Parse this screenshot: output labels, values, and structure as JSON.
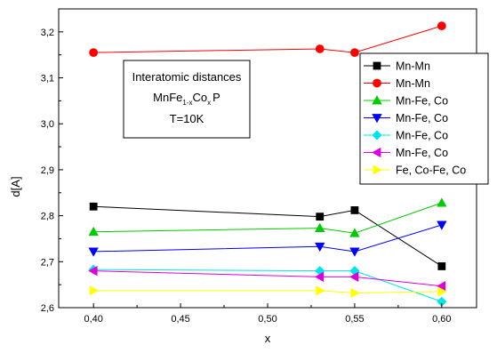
{
  "chart_data": {
    "type": "line",
    "xlabel": "x",
    "ylabel": "d[A]",
    "xlim": [
      0.38,
      0.62
    ],
    "ylim": [
      2.6,
      3.25
    ],
    "x_ticks": [
      0.4,
      0.45,
      0.5,
      0.55,
      0.6
    ],
    "x_tick_labels": [
      "0,40",
      "0,45",
      "0,50",
      "0,55",
      "0,60"
    ],
    "y_ticks": [
      2.6,
      2.7,
      2.8,
      2.9,
      3.0,
      3.1,
      3.2
    ],
    "y_tick_labels": [
      "2,6",
      "2,7",
      "2,8",
      "2,9",
      "3,0",
      "3,1",
      "3,2"
    ],
    "x": [
      0.4,
      0.53,
      0.55,
      0.6
    ],
    "legend_position": "right",
    "series": [
      {
        "name": "Mn-Mn",
        "color": "#000000",
        "marker": "square",
        "values": [
          2.82,
          2.798,
          2.812,
          2.69
        ]
      },
      {
        "name": "Mn-Mn",
        "color": "#ff0000",
        "marker": "circle",
        "values": [
          3.155,
          3.163,
          3.155,
          3.213
        ]
      },
      {
        "name": "Mn-Fe, Co",
        "color": "#00cc00",
        "marker": "triangle-up",
        "values": [
          2.765,
          2.773,
          2.762,
          2.828
        ]
      },
      {
        "name": "Mn-Fe, Co",
        "color": "#0000ff",
        "marker": "triangle-down",
        "values": [
          2.722,
          2.733,
          2.722,
          2.78
        ]
      },
      {
        "name": "Mn-Fe, Co",
        "color": "#00e5e5",
        "marker": "diamond",
        "values": [
          2.683,
          2.68,
          2.68,
          2.613
        ]
      },
      {
        "name": "Mn-Fe, Co",
        "color": "#dd00dd",
        "marker": "triangle-left",
        "values": [
          2.68,
          2.667,
          2.667,
          2.647
        ]
      },
      {
        "name": "Fe, Co-Fe, Co",
        "color": "#ffff00",
        "marker": "triangle-right",
        "values": [
          2.637,
          2.637,
          2.632,
          2.635
        ]
      }
    ],
    "annotation": {
      "line1": "Interatomic distances",
      "line2_main": "MnFe",
      "line2_sub1": "1-x",
      "line2_mid": "Co",
      "line2_sub2": "x",
      "line2_end": "P",
      "line3": "T=10K"
    }
  }
}
